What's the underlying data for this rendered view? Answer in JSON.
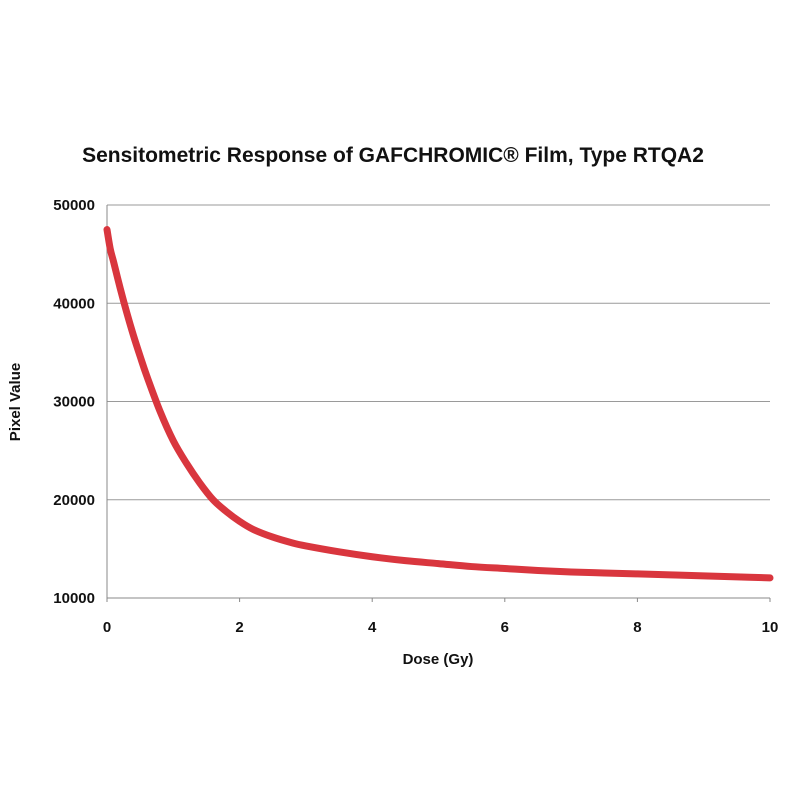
{
  "chart_data": {
    "type": "line",
    "title": "Sensitometric Response of GAFCHROMIC® Film, Type RTQA2",
    "xlabel": "Dose (Gy)",
    "ylabel": "Pixel Value",
    "xlim": [
      0,
      10
    ],
    "ylim": [
      10000,
      50000
    ],
    "xticks": [
      "0",
      "2",
      "4",
      "6",
      "8",
      "10"
    ],
    "yticks": [
      "10000",
      "20000",
      "30000",
      "40000",
      "50000"
    ],
    "grid": "horizontal",
    "legend": "none",
    "series": [
      {
        "color": "#d9363e",
        "x": [
          0,
          0.05,
          0.1,
          0.2,
          0.3,
          0.4,
          0.5,
          0.6,
          0.8,
          1.0,
          1.2,
          1.4,
          1.6,
          1.8,
          2.0,
          2.2,
          2.5,
          2.8,
          3.0,
          3.5,
          4.0,
          4.5,
          5.0,
          5.5,
          6.0,
          6.5,
          7.0,
          7.5,
          8.0,
          8.5,
          9.0,
          9.5,
          10.0
        ],
        "y": [
          47500,
          45500,
          44200,
          41500,
          39000,
          36700,
          34600,
          32600,
          29000,
          26000,
          23700,
          21700,
          20000,
          18800,
          17800,
          17000,
          16200,
          15600,
          15300,
          14700,
          14200,
          13800,
          13500,
          13200,
          13000,
          12800,
          12650,
          12550,
          12450,
          12350,
          12250,
          12150,
          12050
        ]
      }
    ]
  },
  "colors": {
    "gridline": "#9a9a9a",
    "axis": "#888888",
    "curve": "#d9363e"
  }
}
